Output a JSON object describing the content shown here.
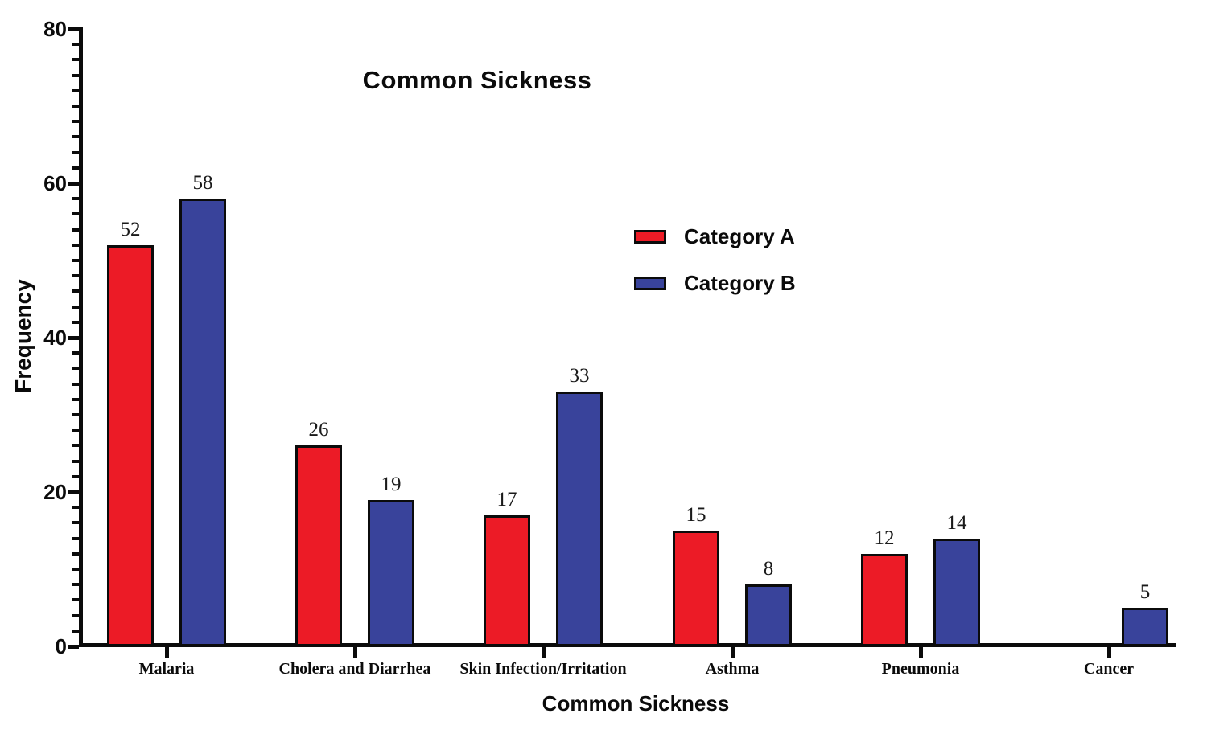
{
  "chart_data": {
    "type": "bar",
    "title": "Common Sickness",
    "xlabel": "Common Sickness",
    "ylabel": "Frequency",
    "categories": [
      "Malaria",
      "Cholera and Diarrhea",
      "Skin Infection/Irritation",
      "Asthma",
      "Pneumonia",
      "Cancer"
    ],
    "series": [
      {
        "name": "Category A",
        "color": "#EC1B26",
        "values": [
          52,
          26,
          17,
          15,
          12,
          null
        ]
      },
      {
        "name": "Category B",
        "color": "#39439B",
        "values": [
          58,
          19,
          33,
          8,
          14,
          5
        ]
      }
    ],
    "ylim": [
      0,
      80
    ],
    "yticks": [
      0,
      20,
      40,
      60,
      80
    ],
    "ytick_step": 20,
    "yminor_step": 2,
    "bar_labels": true,
    "grid": false,
    "legend_position": "upper-center-right-inside",
    "axis_color": "#0b0b0b"
  }
}
